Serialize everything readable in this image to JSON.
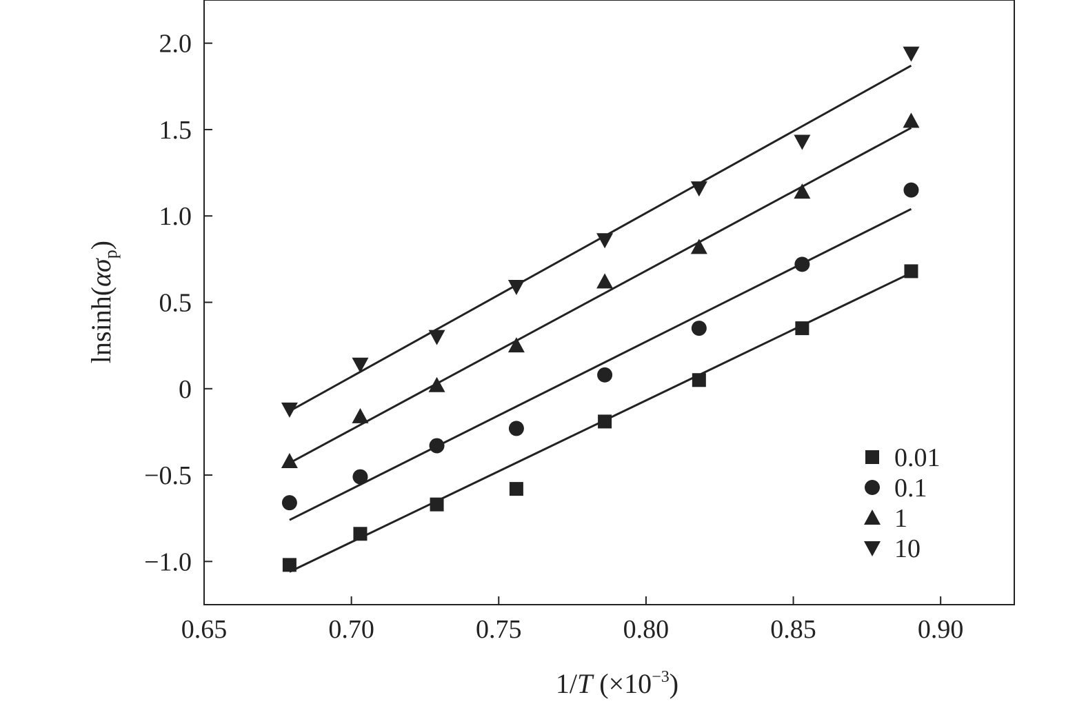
{
  "chart_data": {
    "type": "scatter",
    "xlabel": {
      "prefix": "1/",
      "var": "T",
      "suffix": " (×10",
      "exp": "−3",
      "close": ")"
    },
    "ylabel": {
      "prefix": "lnsinh(",
      "alpha": "α",
      "sigma": "σ",
      "sub": "p",
      "close": ")"
    },
    "xlim": [
      0.65,
      0.925
    ],
    "ylim": [
      -1.25,
      2.25
    ],
    "xticks": [
      {
        "value": 0.65,
        "label": "0.65"
      },
      {
        "value": 0.7,
        "label": "0.70"
      },
      {
        "value": 0.75,
        "label": "0.75"
      },
      {
        "value": 0.8,
        "label": "0.80"
      },
      {
        "value": 0.85,
        "label": "0.85"
      },
      {
        "value": 0.9,
        "label": "0.90"
      }
    ],
    "yticks": [
      {
        "value": -1.0,
        "label": "−1.0"
      },
      {
        "value": -0.5,
        "label": "−0.5"
      },
      {
        "value": 0.0,
        "label": "0"
      },
      {
        "value": 0.5,
        "label": "0.5"
      },
      {
        "value": 1.0,
        "label": "1.0"
      },
      {
        "value": 1.5,
        "label": "1.5"
      },
      {
        "value": 2.0,
        "label": "2.0"
      }
    ],
    "grid": false,
    "legend_position": "bottom-right",
    "series": [
      {
        "name": "0.01",
        "marker": "square",
        "x": [
          0.679,
          0.703,
          0.729,
          0.756,
          0.786,
          0.818,
          0.853,
          0.89
        ],
        "y": [
          -1.02,
          -0.84,
          -0.67,
          -0.58,
          -0.19,
          0.05,
          0.35,
          0.68
        ],
        "fit": {
          "x": [
            0.679,
            0.89
          ],
          "y": [
            -1.06,
            0.67
          ]
        }
      },
      {
        "name": "0.1",
        "marker": "circle",
        "x": [
          0.679,
          0.703,
          0.729,
          0.756,
          0.786,
          0.818,
          0.853,
          0.89
        ],
        "y": [
          -0.66,
          -0.51,
          -0.33,
          -0.23,
          0.08,
          0.35,
          0.72,
          1.15
        ],
        "fit": {
          "x": [
            0.679,
            0.89
          ],
          "y": [
            -0.76,
            1.04
          ]
        }
      },
      {
        "name": "1",
        "marker": "triangle-up",
        "x": [
          0.679,
          0.703,
          0.729,
          0.756,
          0.786,
          0.818,
          0.853,
          0.89
        ],
        "y": [
          -0.42,
          -0.16,
          0.02,
          0.25,
          0.62,
          0.82,
          1.14,
          1.55
        ],
        "fit": {
          "x": [
            0.679,
            0.89
          ],
          "y": [
            -0.43,
            1.51
          ]
        }
      },
      {
        "name": "10",
        "marker": "triangle-down",
        "x": [
          0.679,
          0.703,
          0.729,
          0.756,
          0.786,
          0.818,
          0.853,
          0.89
        ],
        "y": [
          -0.12,
          0.14,
          0.3,
          0.59,
          0.86,
          1.16,
          1.43,
          1.94
        ],
        "fit": {
          "x": [
            0.679,
            0.89
          ],
          "y": [
            -0.13,
            1.87
          ]
        }
      }
    ]
  }
}
